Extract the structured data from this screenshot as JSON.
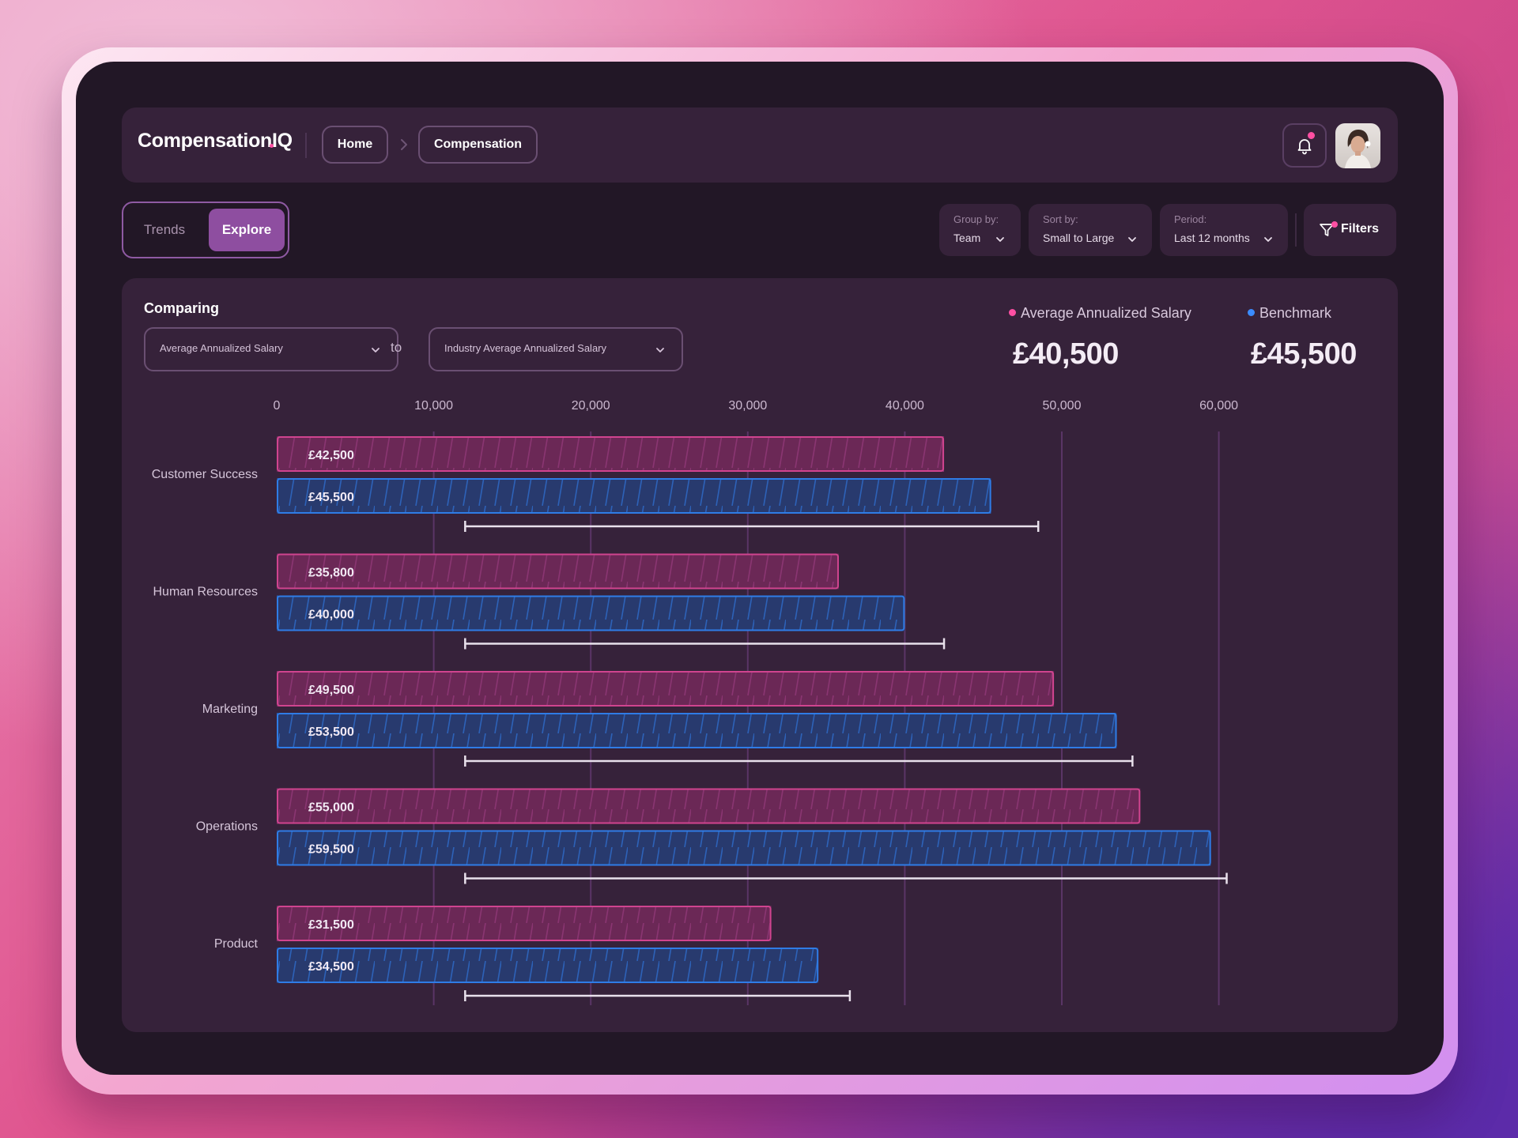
{
  "app": {
    "name": "CompensationIQ"
  },
  "breadcrumb": {
    "home": "Home",
    "current": "Compensation"
  },
  "icons": {
    "notification": "bell-icon",
    "profile": "avatar",
    "filters": "filter-icon",
    "dropdown": "chevron-down-icon",
    "breadcrumb_separator": "chevron-right-icon"
  },
  "view_tabs": {
    "trends": "Trends",
    "explore": "Explore",
    "active": "Explore"
  },
  "toolbar": {
    "group_by": {
      "label": "Group by:",
      "value": "Team"
    },
    "sort_by": {
      "label": "Sort by:",
      "value": "Small to Large"
    },
    "period": {
      "label": "Period:",
      "value": "Last 12 months"
    },
    "filters_label": "Filters"
  },
  "comparison": {
    "heading": "Comparing",
    "metric_a": "Average Annualized Salary",
    "connector": "to",
    "metric_b": "Industry Average Annualized Salary"
  },
  "summary": [
    {
      "label": "Average Annualized Salary",
      "value": "£40,500",
      "color": "#ff4fa3"
    },
    {
      "label": "Benchmark",
      "value": "£45,500",
      "color": "#3b8cff"
    }
  ],
  "colors": {
    "accent": "#8e4ea0",
    "salary_fill": "#6b2856",
    "salary_stroke": "#d0448f",
    "benchmark_fill": "#283a6e",
    "benchmark_stroke": "#2f7ce6",
    "range_line": "#e9e1ec"
  },
  "chart_data": {
    "type": "bar",
    "orientation": "horizontal",
    "categories": [
      "Customer Success",
      "Human Resources",
      "Marketing",
      "Operations",
      "Product"
    ],
    "series": [
      {
        "name": "Average Annualized Salary",
        "values": [
          42500,
          35800,
          49500,
          55000,
          31500
        ],
        "labels": [
          "£42,500",
          "£35,800",
          "£49,500",
          "£55,000",
          "£31,500"
        ]
      },
      {
        "name": "Benchmark",
        "values": [
          45500,
          40000,
          53500,
          59500,
          34500
        ],
        "labels": [
          "£45,500",
          "£40,000",
          "£53,500",
          "£59,500",
          "£34,500"
        ]
      }
    ],
    "ranges": [
      [
        12000,
        48500
      ],
      [
        12000,
        42500
      ],
      [
        12000,
        54500
      ],
      [
        12000,
        60500
      ],
      [
        12000,
        36500
      ]
    ],
    "x_ticks": [
      "0",
      "10,000",
      "20,000",
      "30,000",
      "40,000",
      "50,000",
      "60,000"
    ],
    "x_tick_values": [
      0,
      10000,
      20000,
      30000,
      40000,
      50000,
      60000
    ],
    "xlim": [
      0,
      60000
    ],
    "grid": true
  }
}
